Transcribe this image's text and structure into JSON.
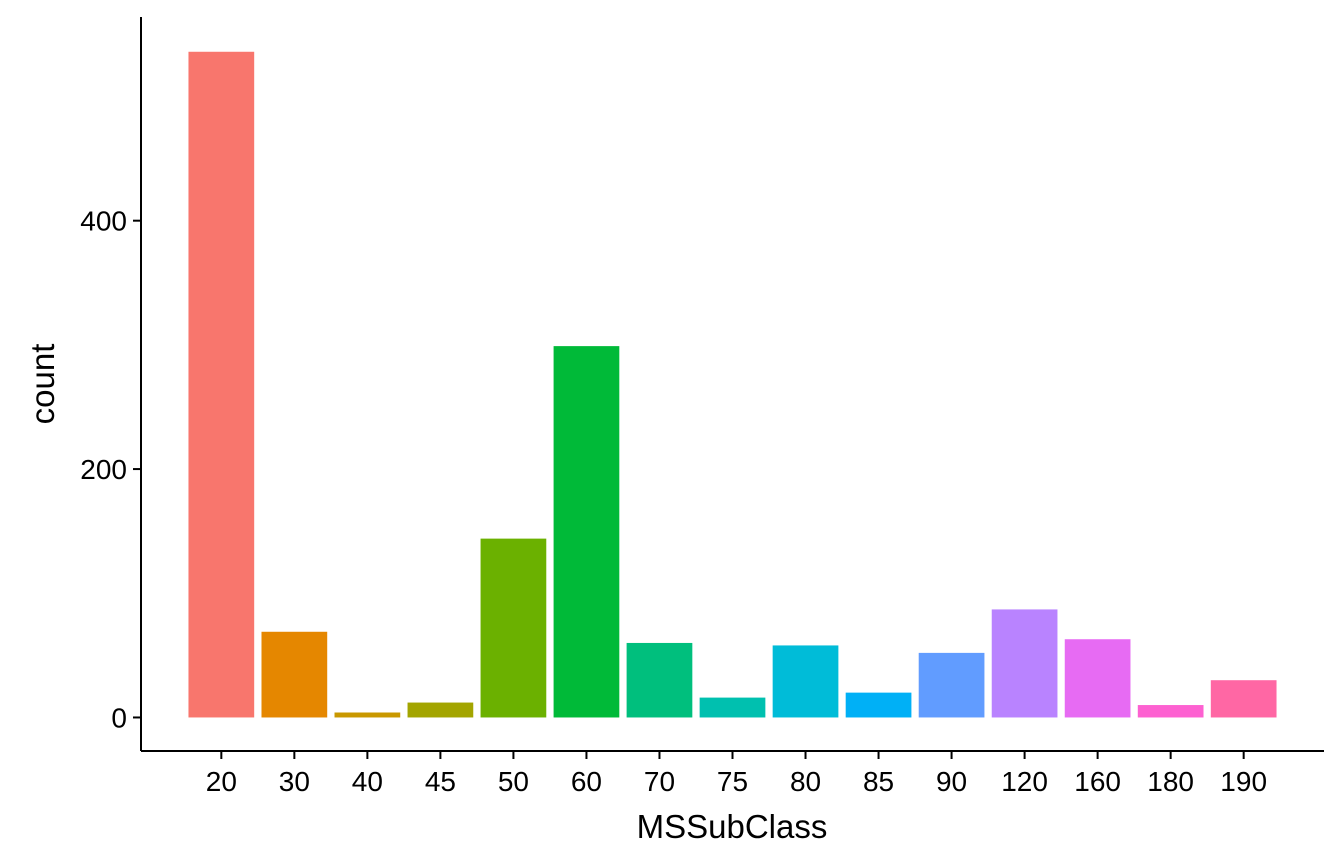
{
  "chart_data": {
    "type": "bar",
    "title": "",
    "xlabel": "MSSubClass",
    "ylabel": "count",
    "categories": [
      "20",
      "30",
      "40",
      "45",
      "50",
      "60",
      "70",
      "75",
      "80",
      "85",
      "90",
      "120",
      "160",
      "180",
      "190"
    ],
    "values": [
      536,
      69,
      4,
      12,
      144,
      299,
      60,
      16,
      58,
      20,
      52,
      87,
      63,
      10,
      30
    ],
    "colors": [
      "#F8766D",
      "#E58700",
      "#C99800",
      "#A3A500",
      "#6BB100",
      "#00BA38",
      "#00BF7D",
      "#00C0AF",
      "#00BCD8",
      "#00B0F6",
      "#619CFF",
      "#B983FF",
      "#E76BF3",
      "#FD61D1",
      "#FF67A4"
    ],
    "yticks": [
      0,
      200,
      400
    ],
    "ylim": [
      -27,
      564
    ],
    "grid": false,
    "legend": "none"
  }
}
